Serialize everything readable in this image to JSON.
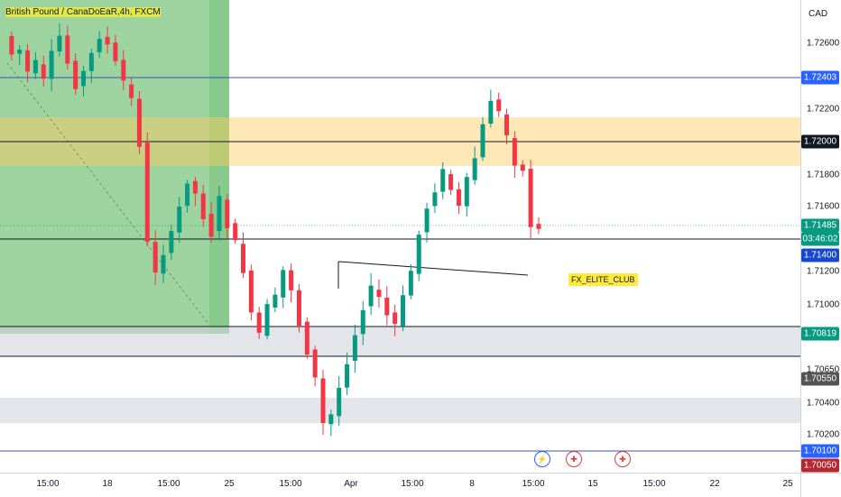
{
  "symbol": {
    "pair": "British Pound / Canadian Dollar",
    "interval": "4h",
    "exchange": "FXCM",
    "overlay_text": "British Pound / CanaDoEaR,4h, FXCM"
  },
  "currency": "CAD",
  "annotation": "FX_ELITE_CLUB",
  "price_axis": {
    "ticks": [
      "1.72600",
      "1.72200",
      "1.71800",
      "1.71600",
      "1.71200",
      "1.71000",
      "1.70650",
      "1.70400",
      "1.70200"
    ],
    "tags": [
      {
        "label": "1.72403",
        "color": "#2962ff"
      },
      {
        "label": "1.72000",
        "color": "#131722"
      },
      {
        "label": "1.71485",
        "color": "#089981"
      },
      {
        "label": "03:46:02",
        "color": "#089981"
      },
      {
        "label": "1.71400",
        "color": "#1848cc"
      },
      {
        "label": "1.70819",
        "color": "#089981"
      },
      {
        "label": "1.70550",
        "color": "#555555"
      },
      {
        "label": "1.70100",
        "color": "#2962ff"
      },
      {
        "label": "1.70050",
        "color": "#b22833"
      }
    ]
  },
  "time_axis": {
    "labels": [
      "15:00",
      "18",
      "15:00",
      "25",
      "15:00",
      "Apr",
      "15:00",
      "8",
      "15:00",
      "15",
      "15:00",
      "22",
      "25"
    ]
  },
  "events": {
    "flash_icon": "lightning-icon",
    "flag_icon": "uk-flag-icon"
  },
  "colors": {
    "up": "#089981",
    "down": "#f23645",
    "zone_green": "#4caf50",
    "zone_yellow": "#ffcc60",
    "zone_gray": "#d1d4dc",
    "hline_blue": "#3f51b5",
    "hline_black": "#131722"
  }
}
